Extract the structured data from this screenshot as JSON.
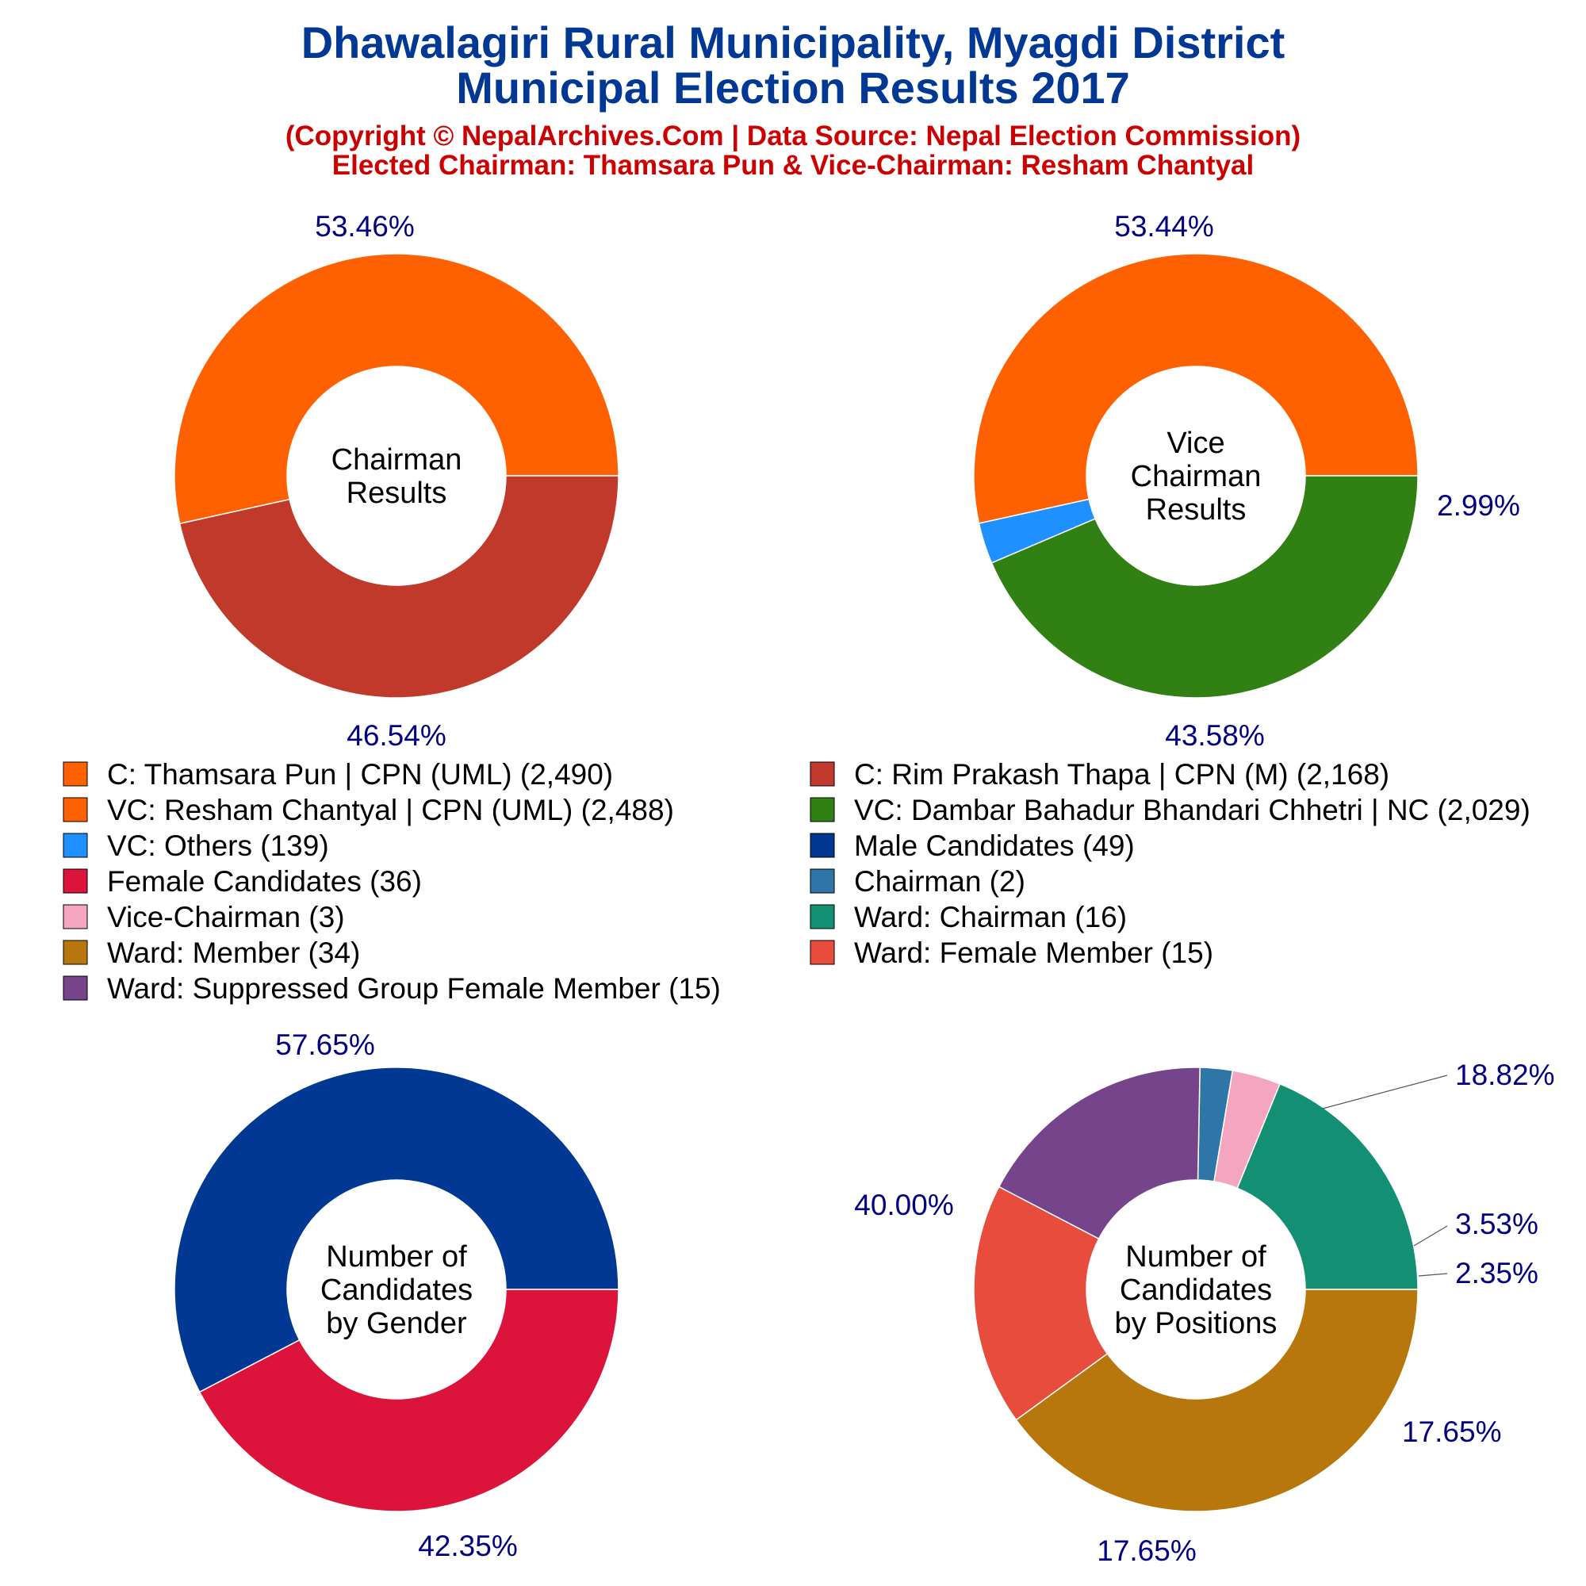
{
  "header": {
    "title_line1": "Dhawalagiri Rural Municipality, Myagdi District",
    "title_line2": "Municipal Election Results 2017",
    "subtitle_line1": "(Copyright © NepalArchives.Com | Data Source: Nepal Election Commission)",
    "subtitle_line2": "Elected Chairman: Thamsara Pun & Vice-Chairman: Resham Chantyal"
  },
  "colors": {
    "title": "#003893",
    "subtitle": "#cc0000",
    "percent_label": "#000080",
    "leader_line": "#555555"
  },
  "legend": [
    {
      "label": "C: Thamsara Pun | CPN (UML) (2,490)",
      "color": "#ff6000"
    },
    {
      "label": "C: Rim Prakash Thapa | CPN (M) (2,168)",
      "color": "#c0392b"
    },
    {
      "label": "VC: Resham Chantyal | CPN (UML) (2,488)",
      "color": "#ff6000"
    },
    {
      "label": "VC: Dambar Bahadur Bhandari Chhetri | NC (2,029)",
      "color": "#308014"
    },
    {
      "label": "VC: Others (139)",
      "color": "#1e90ff"
    },
    {
      "label": "Male Candidates (49)",
      "color": "#003893"
    },
    {
      "label": "Female Candidates (36)",
      "color": "#dc143c"
    },
    {
      "label": "Chairman (2)",
      "color": "#2e75a8"
    },
    {
      "label": "Vice-Chairman (3)",
      "color": "#f4a6c0"
    },
    {
      "label": "Ward: Chairman (16)",
      "color": "#138f74"
    },
    {
      "label": "Ward: Member (34)",
      "color": "#b8770d"
    },
    {
      "label": "Ward: Female Member (15)",
      "color": "#e74c3c"
    },
    {
      "label": "Ward: Suppressed Group Female Member (15)",
      "color": "#76448a"
    }
  ],
  "chart_data": [
    {
      "type": "pie",
      "donut": true,
      "center_label": [
        "Chairman",
        "Results"
      ],
      "slices": [
        {
          "name": "C: Thamsara Pun | CPN (UML)",
          "value": 2490,
          "percent_label": "53.46%",
          "color": "#ff6000"
        },
        {
          "name": "C: Rim Prakash Thapa | CPN (M)",
          "value": 2168,
          "percent_label": "46.54%",
          "color": "#c0392b"
        }
      ]
    },
    {
      "type": "pie",
      "donut": true,
      "center_label": [
        "Vice",
        "Chairman",
        "Results"
      ],
      "slices": [
        {
          "name": "VC: Resham Chantyal | CPN (UML)",
          "value": 2488,
          "percent_label": "53.44%",
          "color": "#ff6000"
        },
        {
          "name": "VC: Others",
          "value": 139,
          "percent_label": "2.99%",
          "color": "#1e90ff"
        },
        {
          "name": "VC: Dambar Bahadur Bhandari Chhetri | NC",
          "value": 2029,
          "percent_label": "43.58%",
          "color": "#308014"
        }
      ]
    },
    {
      "type": "pie",
      "donut": true,
      "center_label": [
        "Number of",
        "Candidates",
        "by Gender"
      ],
      "slices": [
        {
          "name": "Male Candidates",
          "value": 49,
          "percent_label": "57.65%",
          "color": "#003893"
        },
        {
          "name": "Female Candidates",
          "value": 36,
          "percent_label": "42.35%",
          "color": "#dc143c"
        }
      ]
    },
    {
      "type": "pie",
      "donut": true,
      "center_label": [
        "Number of",
        "Candidates",
        "by Positions"
      ],
      "slices": [
        {
          "name": "Ward: Chairman",
          "value": 16,
          "percent_label": "18.82%",
          "color": "#138f74"
        },
        {
          "name": "Vice-Chairman",
          "value": 3,
          "percent_label": "3.53%",
          "color": "#f4a6c0"
        },
        {
          "name": "Chairman",
          "value": 2,
          "percent_label": "2.35%",
          "color": "#2e75a8"
        },
        {
          "name": "Ward: Suppressed Group Female Member",
          "value": 15,
          "percent_label": "17.65%",
          "color": "#76448a"
        },
        {
          "name": "Ward: Female Member",
          "value": 15,
          "percent_label": "17.65%",
          "color": "#e74c3c"
        },
        {
          "name": "Ward: Member",
          "value": 34,
          "percent_label": "40.00%",
          "color": "#b8770d"
        }
      ]
    }
  ]
}
